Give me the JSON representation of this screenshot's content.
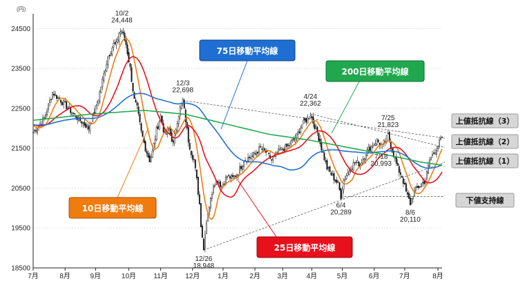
{
  "chart_data": {
    "type": "candlestick",
    "unit": "(円)",
    "yticks": [
      24500,
      23500,
      22500,
      21500,
      20500,
      19500,
      18500
    ],
    "ylim": [
      18500,
      24800
    ],
    "xlim": [
      0,
      295
    ],
    "months": [
      {
        "label": "7月",
        "d": 0
      },
      {
        "label": "8月",
        "d": 23
      },
      {
        "label": "9月",
        "d": 45
      },
      {
        "label": "10月",
        "d": 69
      },
      {
        "label": "11月",
        "d": 92
      },
      {
        "label": "12月",
        "d": 115
      },
      {
        "label": "1月",
        "d": 137
      },
      {
        "label": "2月",
        "d": 160
      },
      {
        "label": "3月",
        "d": 180
      },
      {
        "label": "4月",
        "d": 201
      },
      {
        "label": "5月",
        "d": 223
      },
      {
        "label": "6月",
        "d": 246
      },
      {
        "label": "7月",
        "d": 268
      },
      {
        "label": "8月",
        "d": 292
      }
    ],
    "price_sketch": [
      [
        0,
        21900
      ],
      [
        8,
        22250
      ],
      [
        14,
        22900
      ],
      [
        20,
        22700
      ],
      [
        28,
        22400
      ],
      [
        34,
        22200
      ],
      [
        40,
        22000
      ],
      [
        46,
        22600
      ],
      [
        50,
        23200
      ],
      [
        54,
        23800
      ],
      [
        58,
        24100
      ],
      [
        60,
        24100
      ],
      [
        62,
        24400
      ],
      [
        64,
        24448
      ],
      [
        67,
        24100
      ],
      [
        70,
        23500
      ],
      [
        73,
        22700
      ],
      [
        75,
        22500
      ],
      [
        78,
        21900
      ],
      [
        81,
        21500
      ],
      [
        84,
        21200
      ],
      [
        86,
        21400
      ],
      [
        89,
        21950
      ],
      [
        92,
        22300
      ],
      [
        95,
        21800
      ],
      [
        98,
        22000
      ],
      [
        101,
        21600
      ],
      [
        104,
        22200
      ],
      [
        106,
        22500
      ],
      [
        108,
        22698
      ],
      [
        110,
        22200
      ],
      [
        112,
        21700
      ],
      [
        114,
        21400
      ],
      [
        116,
        21200
      ],
      [
        118,
        20700
      ],
      [
        120,
        20100
      ],
      [
        121,
        19600
      ],
      [
        122,
        19300
      ],
      [
        123,
        18948
      ],
      [
        124,
        19400
      ],
      [
        126,
        19900
      ],
      [
        128,
        20200
      ],
      [
        130,
        20600
      ],
      [
        133,
        20700
      ],
      [
        136,
        20550
      ],
      [
        140,
        20800
      ],
      [
        144,
        20750
      ],
      [
        148,
        20900
      ],
      [
        152,
        21200
      ],
      [
        158,
        21300
      ],
      [
        164,
        21500
      ],
      [
        168,
        21400
      ],
      [
        172,
        21200
      ],
      [
        178,
        21450
      ],
      [
        184,
        21550
      ],
      [
        190,
        21800
      ],
      [
        194,
        22100
      ],
      [
        198,
        22250
      ],
      [
        200,
        22362
      ],
      [
        202,
        22150
      ],
      [
        205,
        21900
      ],
      [
        208,
        21500
      ],
      [
        212,
        21000
      ],
      [
        216,
        20800
      ],
      [
        220,
        20600
      ],
      [
        222,
        20289
      ],
      [
        224,
        20700
      ],
      [
        228,
        20950
      ],
      [
        232,
        21150
      ],
      [
        236,
        21100
      ],
      [
        240,
        21400
      ],
      [
        244,
        21550
      ],
      [
        248,
        21700
      ],
      [
        252,
        21550
      ],
      [
        256,
        21823
      ],
      [
        259,
        21450
      ],
      [
        263,
        20993
      ],
      [
        266,
        20800
      ],
      [
        269,
        20400
      ],
      [
        272,
        20110
      ],
      [
        274,
        20350
      ],
      [
        277,
        20500
      ],
      [
        280,
        20600
      ],
      [
        283,
        20700
      ],
      [
        286,
        21200
      ],
      [
        290,
        21450
      ],
      [
        294,
        21700
      ]
    ],
    "ma_lines": [
      {
        "name": "10日移動平均線",
        "color": "#f07c10",
        "period": 10
      },
      {
        "name": "25日移動平均線",
        "color": "#e8101c",
        "period": 25
      },
      {
        "name": "75日移動平均線",
        "color": "#1f6fd2",
        "period": 75
      },
      {
        "name": "200日移動平均線",
        "color": "#21a84e",
        "period": 200
      }
    ],
    "ma200_sketch": [
      [
        0,
        22200
      ],
      [
        40,
        22350
      ],
      [
        80,
        22450
      ],
      [
        110,
        22350
      ],
      [
        140,
        22100
      ],
      [
        170,
        21850
      ],
      [
        200,
        21700
      ],
      [
        230,
        21500
      ],
      [
        260,
        21300
      ],
      [
        280,
        21150
      ],
      [
        294,
        21080
      ]
    ],
    "annotations": [
      {
        "date": "10/2",
        "value": "24,448",
        "d": 64,
        "price": 24448,
        "pos": "above"
      },
      {
        "date": "12/3",
        "value": "22,698",
        "d": 108,
        "price": 22698,
        "pos": "above"
      },
      {
        "date": "4/24",
        "value": "22,362",
        "d": 200,
        "price": 22362,
        "pos": "above"
      },
      {
        "date": "7/25",
        "value": "21,823",
        "d": 256,
        "price": 21823,
        "pos": "above"
      },
      {
        "date": "7/18",
        "value": "20,993",
        "d": 250,
        "price": 20993,
        "pos": "left"
      },
      {
        "date": "6/4",
        "value": "20,289",
        "d": 222,
        "price": 20289,
        "pos": "below"
      },
      {
        "date": "8/6",
        "value": "20,110",
        "d": 272,
        "price": 20110,
        "pos": "below"
      },
      {
        "date": "12/26",
        "value": "18,948",
        "d": 123,
        "price": 18948,
        "pos": "below"
      }
    ],
    "trendlines": [
      {
        "name": "上値抵抗線（3）",
        "from": [
          108,
          22698
        ],
        "to": [
          297,
          21750
        ]
      },
      {
        "name": "上値抵抗線（2）",
        "from": [
          200,
          22362
        ],
        "to": [
          297,
          21520
        ]
      },
      {
        "name": "上値抵抗線（1）",
        "from": [
          123,
          18948
        ],
        "to": [
          297,
          21150
        ]
      },
      {
        "name": "下値支持線",
        "from": [
          222,
          20289
        ],
        "to": [
          297,
          20289
        ]
      }
    ],
    "labels": {
      "ma10": "10日移動平均線",
      "ma25": "25日移動平均線",
      "ma75": "75日移動平均線",
      "ma200": "200日移動平均線",
      "res3": "上値抵抗線（3）",
      "res2": "上値抵抗線（2）",
      "res1": "上値抵抗線（1）",
      "support": "下値支持線"
    }
  }
}
